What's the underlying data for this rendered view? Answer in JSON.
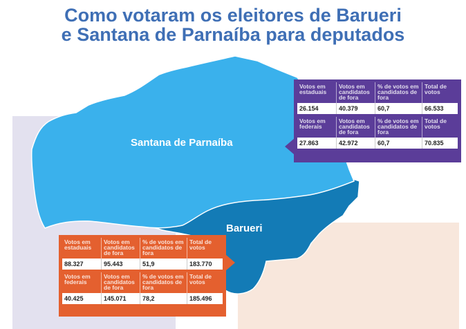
{
  "title": {
    "line1": "Como votaram os eleitores de Barueri",
    "line2": "e Santana de Parnaíba para deputados"
  },
  "colors": {
    "title": "#3f6fb5",
    "santana_fill": "#3ab1ec",
    "barueri_fill": "#137bb6",
    "santana_panel": "#5b3d99",
    "barueri_panel": "#e4602f"
  },
  "map": {
    "santana_label": "Santana de Parnaíba",
    "barueri_label": "Barueri"
  },
  "headers": {
    "estaduais": "Votos em estaduais",
    "federais": "Votos em federais",
    "candidatos_fora": "Votos em candidatos de fora",
    "pct_fora": "% de votos em candidatos de fora",
    "total": "Total de votos"
  },
  "santana": {
    "estaduais": {
      "votos": "26.154",
      "fora": "40.379",
      "pct": "60,7",
      "total": "66.533"
    },
    "federais": {
      "votos": "27.863",
      "fora": "42.972",
      "pct": "60,7",
      "total": "70.835"
    }
  },
  "barueri": {
    "estaduais": {
      "votos": "88.327",
      "fora": "95.443",
      "pct": "51,9",
      "total": "183.770"
    },
    "federais": {
      "votos": "40.425",
      "fora": "145.071",
      "pct": "78,2",
      "total": "185.496"
    }
  }
}
